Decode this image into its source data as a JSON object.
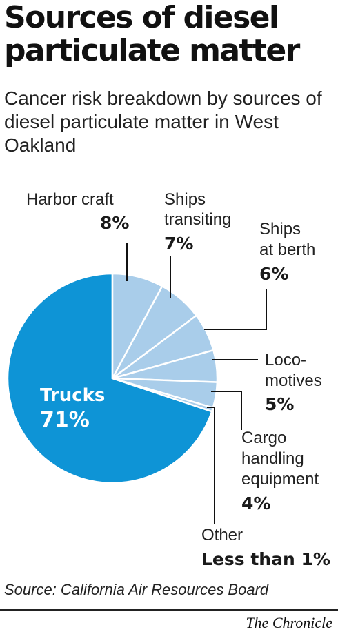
{
  "title": "Sources of diesel particulate matter",
  "subtitle": "Cancer risk breakdown by sources of diesel particulate matter in West Oakland",
  "source": "Source: California Air Resources Board",
  "credit": "The Chronicle",
  "colors": {
    "main": "#0e94d6",
    "light": "#a9cdea",
    "separator": "#ffffff",
    "leader": "#111111"
  },
  "chart_data": {
    "type": "pie",
    "title": "Sources of diesel particulate matter",
    "slices": [
      {
        "label": "Trucks",
        "display": "71%",
        "value": 71
      },
      {
        "label": "Harbor craft",
        "display": "8%",
        "value": 8
      },
      {
        "label": "Ships transiting",
        "display": "7%",
        "value": 7
      },
      {
        "label": "Ships at berth",
        "display": "6%",
        "value": 6
      },
      {
        "label": "Loco-motives",
        "display": "5%",
        "value": 5
      },
      {
        "label": "Cargo handling equipment",
        "display": "4%",
        "value": 4
      },
      {
        "label": "Other",
        "display": "Less than 1%",
        "value": 0.6
      }
    ]
  }
}
